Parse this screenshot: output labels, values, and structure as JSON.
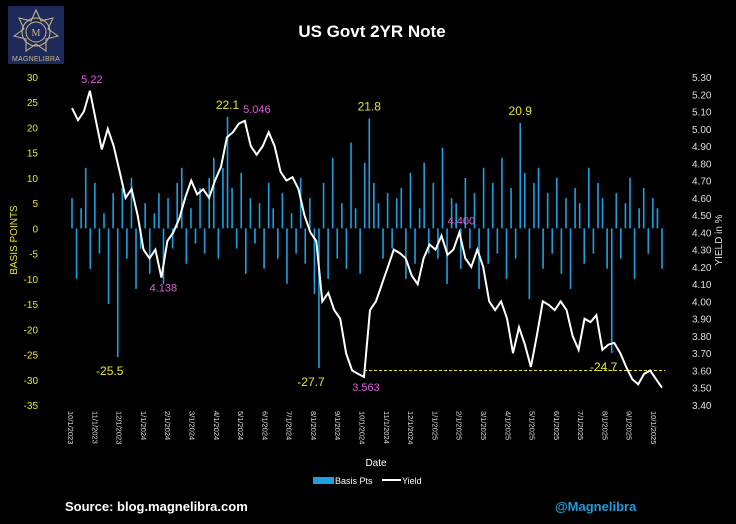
{
  "brand": {
    "logo_text": "MAGNELIBRA"
  },
  "footer": {
    "source": "Source: blog.magnelibra.com",
    "handle": "@Magnelibra"
  },
  "colors": {
    "bars": "#1ba1e2",
    "line": "#ffffff",
    "left_axis": "#e6e62e",
    "peak_labels": "#e060e0",
    "ref_line": "#e6e62e",
    "handle": "#1e9ad6"
  },
  "chart_data": {
    "type": "bar+line",
    "title": "US Govt 2YR Note",
    "xlabel": "Date",
    "ylabel_left": "BASIS POINTS",
    "ylabel_right": "YIELD in %",
    "ylim_left": [
      -35,
      30
    ],
    "ylim_right": [
      3.4,
      5.3
    ],
    "left_ticks": [
      "30",
      "25",
      "20",
      "15",
      "10",
      "5",
      "0",
      "-5",
      "-10",
      "-15",
      "-20",
      "-25",
      "-30",
      "-35"
    ],
    "right_ticks": [
      "5.30",
      "5.20",
      "5.10",
      "5.00",
      "4.90",
      "4.80",
      "4.70",
      "4.60",
      "4.50",
      "4.40",
      "4.30",
      "4.20",
      "4.10",
      "4.00",
      "3.90",
      "3.80",
      "3.70",
      "3.60",
      "3.50",
      "3.40"
    ],
    "x_ticks": [
      "10/1/2023",
      "11/1/2023",
      "12/1/2023",
      "1/1/2024",
      "2/1/2024",
      "3/1/2024",
      "4/1/2024",
      "5/1/2024",
      "6/1/2024",
      "7/1/2024",
      "8/1/2024",
      "9/1/2024",
      "10/1/2024",
      "11/1/2024",
      "12/1/2024",
      "1/1/2025",
      "2/1/2025",
      "3/1/2025",
      "4/1/2025",
      "5/1/2025",
      "6/1/2025",
      "7/1/2025",
      "8/1/2025",
      "9/1/2025",
      "10/1/2025"
    ],
    "legend": [
      {
        "name": "Basis Pts",
        "type": "bar"
      },
      {
        "name": "Yield",
        "type": "line"
      }
    ],
    "legend_position": "bottom",
    "series": [
      {
        "name": "Basis Pts",
        "axis": "left",
        "values": [
          6,
          -10,
          4,
          12,
          -8,
          9,
          -5,
          3,
          -15,
          7,
          -25.5,
          8,
          -6,
          10,
          -12,
          -4,
          5,
          -9,
          3,
          7,
          -11,
          6,
          -4,
          9,
          12,
          -7,
          4,
          -3,
          8,
          -5,
          10,
          14,
          -6,
          12,
          22.1,
          8,
          -4,
          11,
          -9,
          6,
          -3,
          5,
          -8,
          9,
          4,
          -6,
          7,
          -11,
          3,
          -5,
          10,
          -7,
          6,
          -13,
          -27.7,
          9,
          -10,
          14,
          -6,
          5,
          -8,
          17,
          4,
          -9,
          13,
          21.8,
          9,
          5,
          -6,
          7,
          -4,
          6,
          8,
          -10,
          11,
          -7,
          4,
          13,
          -5,
          9,
          -6,
          16,
          -11,
          6,
          5,
          -8,
          10,
          -4,
          7,
          -12,
          12,
          -7,
          9,
          -5,
          14,
          -10,
          8,
          -6,
          20.9,
          11,
          -14,
          9,
          12,
          -8,
          7,
          -5,
          10,
          -9,
          6,
          -12,
          8,
          5,
          -7,
          12,
          -5,
          9,
          6,
          -8,
          -24.7,
          7,
          -6,
          5,
          10,
          -10,
          4,
          8,
          -5,
          6,
          4,
          -8
        ]
      },
      {
        "name": "Yield",
        "axis": "right",
        "values": [
          5.12,
          5.05,
          5.1,
          5.22,
          5.05,
          4.88,
          5.0,
          4.9,
          4.75,
          4.6,
          4.65,
          4.5,
          4.3,
          4.25,
          4.3,
          4.138,
          4.35,
          4.4,
          4.48,
          4.6,
          4.7,
          4.62,
          4.65,
          4.6,
          4.7,
          4.78,
          4.95,
          4.98,
          5.03,
          5.046,
          4.9,
          4.85,
          4.9,
          4.98,
          4.9,
          4.75,
          4.7,
          4.72,
          4.65,
          4.5,
          4.4,
          4.35,
          4.0,
          4.05,
          3.95,
          3.9,
          3.7,
          3.6,
          3.58,
          3.563,
          3.95,
          4.0,
          4.1,
          4.2,
          4.3,
          4.28,
          4.25,
          4.15,
          4.1,
          4.25,
          4.33,
          4.3,
          4.38,
          4.27,
          4.3,
          4.4,
          4.25,
          4.2,
          4.3,
          4.2,
          4.0,
          3.95,
          4.0,
          3.9,
          3.7,
          3.85,
          3.75,
          3.62,
          3.8,
          4.0,
          3.98,
          3.95,
          4.0,
          3.95,
          3.8,
          3.72,
          3.9,
          3.88,
          3.92,
          3.72,
          3.75,
          3.76,
          3.7,
          3.62,
          3.55,
          3.52,
          3.58,
          3.6,
          3.55,
          3.5
        ]
      }
    ],
    "bar_annotations": [
      {
        "index": 10,
        "text": "-25.5"
      },
      {
        "index": 34,
        "text": "22.1"
      },
      {
        "index": 54,
        "text": "-27.7"
      },
      {
        "index": 65,
        "text": "21.8"
      },
      {
        "index": 98,
        "text": "20.9"
      },
      {
        "index": 118,
        "text": "-24.7"
      }
    ],
    "yield_annotations": [
      {
        "index": 3,
        "text": "5.22"
      },
      {
        "index": 15,
        "text": "4.138"
      },
      {
        "index": 29,
        "text": "5.046"
      },
      {
        "index": 49,
        "text": "3.563"
      },
      {
        "index": 65,
        "text": "4.400"
      }
    ],
    "reference_line": {
      "value": 3.6,
      "axis": "right",
      "style": "dashed",
      "from_index": 49
    }
  }
}
